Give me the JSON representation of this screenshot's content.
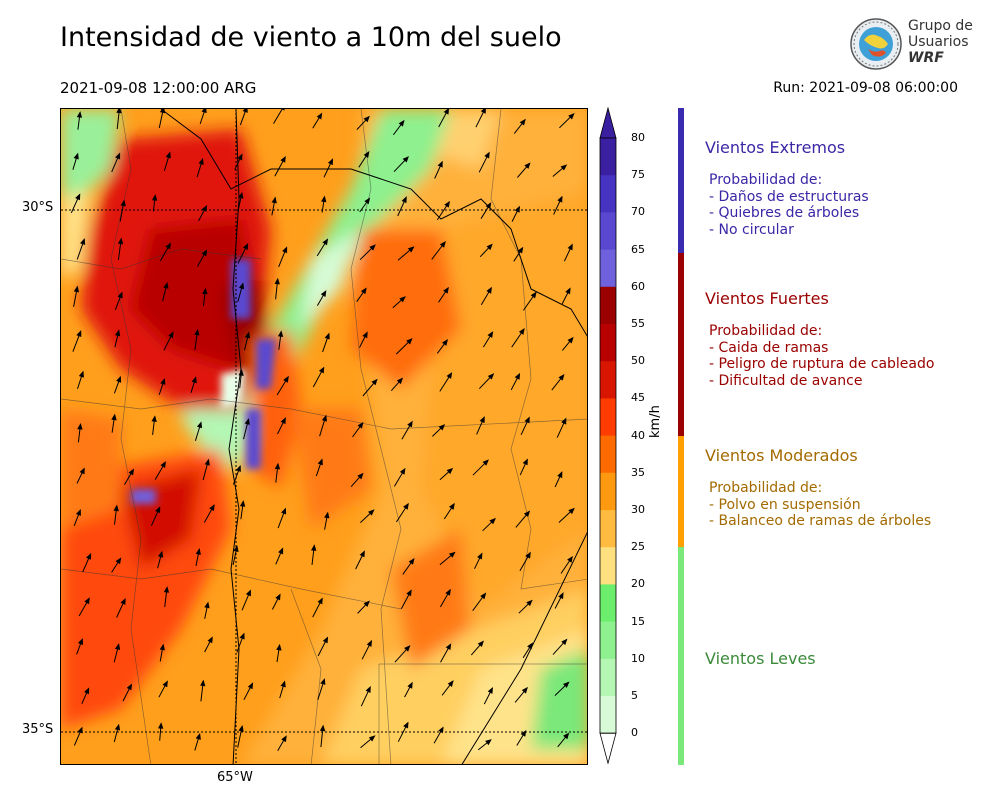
{
  "header": {
    "title": "Intensidad de viento a 10m del suelo",
    "valid_time": "2021-09-08 12:00:00 ARG",
    "run": "Run: 2021-09-08 06:00:00"
  },
  "logo": {
    "line1": "Grupo de",
    "line2": "Usuarios",
    "line3": "WRF"
  },
  "map": {
    "lat_labels": [
      "30°S",
      "35°S"
    ],
    "lon_labels": [
      "65°W"
    ]
  },
  "colorbar": {
    "units": "km/h",
    "ticks": [
      "80",
      "75",
      "70",
      "65",
      "60",
      "55",
      "50",
      "45",
      "40",
      "35",
      "30",
      "25",
      "20",
      "15",
      "10",
      "5",
      "0"
    ],
    "colors": [
      "#3a20a0",
      "#4733c2",
      "#5a48d0",
      "#6f60de",
      "#9a0000",
      "#b80000",
      "#d81500",
      "#ff3c00",
      "#ff6a00",
      "#ff9a10",
      "#ffbb40",
      "#ffe080",
      "#6cee6c",
      "#8ef08e",
      "#b4f6b4",
      "#d6fbd6",
      "#ffffff"
    ]
  },
  "categories": [
    {
      "title": "Vientos Extremos",
      "desc": "Probabilidad de:\n- Daños de estructuras\n- Quiebres de árboles\n- No circular",
      "color": "#3b26a6",
      "bar_color": "#3b2bb0"
    },
    {
      "title": "Vientos Fuertes",
      "desc": "Probabilidad de:\n- Caida de ramas\n- Peligro de ruptura de cableado\n- Dificultad de avance",
      "color": "#9a0000",
      "bar_color": "#9a0000"
    },
    {
      "title": "Vientos Moderados",
      "desc": "Probabilidad de:\n- Polvo en suspensión\n- Balanceo de ramas de árboles",
      "color": "#a36a00",
      "bar_color": "#ff9f00"
    },
    {
      "title": "Vientos Leves",
      "desc": "",
      "color": "#3a8a3a",
      "bar_color": "#7ae87a"
    }
  ]
}
